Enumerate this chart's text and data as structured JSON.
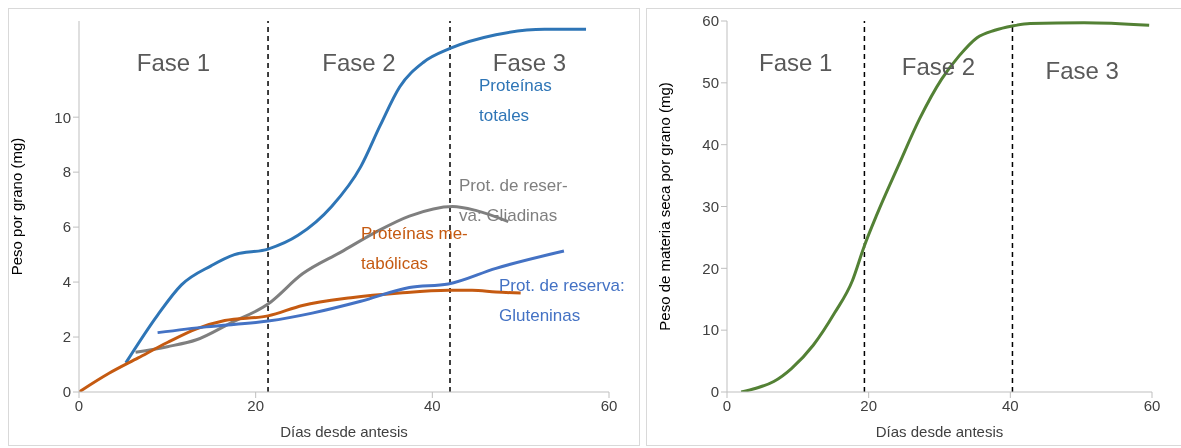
{
  "chart_data": [
    {
      "type": "line",
      "xlabel": "Días desde antesis",
      "ylabel": "Peso por grano (mg)",
      "xlim": [
        0,
        60
      ],
      "xticks": [
        0,
        20,
        40,
        60
      ],
      "ylim": [
        0,
        13.5
      ],
      "yticks": [
        0,
        2,
        4,
        6,
        8,
        10
      ],
      "grid": false,
      "legend": false,
      "marker": "none",
      "line_style": "solid",
      "annotations": [
        "Fase 1",
        "Fase 2",
        "Fase 3"
      ],
      "ref_lines": [
        {
          "axis": "x",
          "value": 21.4,
          "color": "#000000",
          "line_style": "dashed"
        },
        {
          "axis": "x",
          "value": 42,
          "color": "#000000",
          "line_style": "dashed"
        }
      ],
      "series": [
        {
          "name": "Proteínas totales",
          "color": "#2e75b6",
          "x": [
            5.3,
            8.9,
            11.6,
            15,
            17.6,
            21.4,
            24.8,
            28.6,
            31.9,
            34.1,
            36.3,
            39,
            42,
            47.2,
            52.7,
            57.4
          ],
          "values": [
            1.06,
            2.8,
            3.9,
            4.6,
            5,
            5.2,
            5.7,
            6.75,
            8.2,
            9.7,
            11.1,
            12,
            12.5,
            13,
            13.2,
            13.2
          ]
        },
        {
          "name": "Prot. de reser-va: Gliadinas",
          "color": "#7f7f7f",
          "x": [
            6.4,
            10,
            13.3,
            17.1,
            21.4,
            25.3,
            29.7,
            33.5,
            37.4,
            42.3,
            45,
            48.6
          ],
          "values": [
            1.45,
            1.65,
            1.9,
            2.5,
            3.2,
            4.3,
            5.1,
            5.8,
            6.4,
            6.75,
            6.6,
            6.2
          ]
        },
        {
          "name": "Proteínas me-tabólicas",
          "color": "#c55a11",
          "x": [
            0,
            3.4,
            6.7,
            10,
            13.3,
            16.5,
            21.4,
            25.3,
            30.8,
            36.3,
            41.8,
            44.5,
            47.2,
            50
          ],
          "values": [
            0,
            0.68,
            1.24,
            1.8,
            2.3,
            2.6,
            2.77,
            3.15,
            3.43,
            3.6,
            3.7,
            3.7,
            3.64,
            3.6
          ]
        },
        {
          "name": "Prot. de reserva: Gluteninas",
          "color": "#4472c4",
          "x": [
            8.9,
            14.4,
            21.4,
            26.4,
            31.9,
            37.4,
            41.8,
            47.2,
            54.9
          ],
          "values": [
            2.16,
            2.37,
            2.58,
            2.87,
            3.3,
            3.8,
            3.93,
            4.5,
            5.13
          ]
        }
      ]
    },
    {
      "type": "line",
      "xlabel": "Días desde antesis",
      "ylabel": "Peso de materia seca por grano (mg)",
      "xlim": [
        0,
        60
      ],
      "xticks": [
        0,
        20,
        40,
        60
      ],
      "ylim": [
        0,
        60
      ],
      "yticks": [
        0,
        10,
        20,
        30,
        40,
        50,
        60
      ],
      "grid": false,
      "legend": false,
      "marker": "none",
      "line_style": "solid",
      "annotations": [
        "Fase 1",
        "Fase 2",
        "Fase 3"
      ],
      "ref_lines": [
        {
          "axis": "x",
          "value": 19.4,
          "color": "#000000",
          "line_style": "dashed"
        },
        {
          "axis": "x",
          "value": 40.3,
          "color": "#000000",
          "line_style": "dashed"
        }
      ],
      "series": [
        {
          "color": "#538135",
          "x": [
            2,
            4.1,
            6.6,
            9.1,
            12.2,
            15.2,
            17.7,
            19.35,
            21.2,
            24.2,
            27.2,
            30.3,
            32.8,
            35.3,
            37.8,
            40.3,
            42.8,
            50.4,
            59.6
          ],
          "values": [
            0,
            0.6,
            1.7,
            3.8,
            7.6,
            12.8,
            18,
            23.5,
            28.8,
            36.6,
            44.2,
            50.6,
            54.4,
            57.3,
            58.5,
            59.2,
            59.6,
            59.7,
            59.3
          ]
        }
      ]
    }
  ]
}
